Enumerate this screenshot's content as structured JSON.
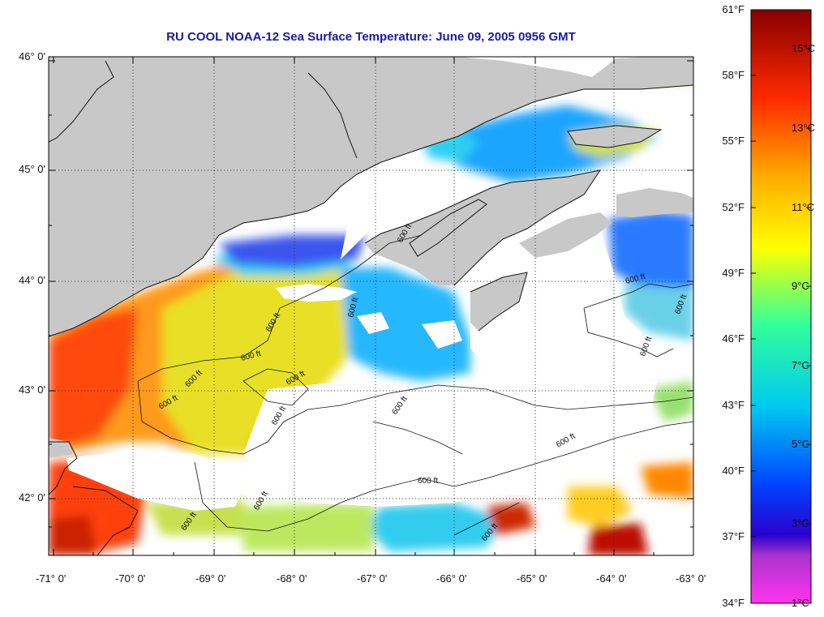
{
  "title": "RU COOL  NOAA-12  Sea Surface Temperature:  June 09, 2005 0956 GMT",
  "latitude_labels": [
    "46° 0'",
    "45° 0'",
    "44° 0'",
    "43° 0'",
    "42° 0'"
  ],
  "longitude_labels": [
    "-71° 0'",
    "-70° 0'",
    "-69° 0'",
    "-68° 0'",
    "-67° 0'",
    "-66° 0'",
    "-65° 0'",
    "-64° 0'",
    "-63° 0'"
  ],
  "contour_label": "600 ft",
  "colorbar": {
    "fahrenheit_labels": [
      "61°F",
      "58°F",
      "55°F",
      "52°F",
      "49°F",
      "46°F",
      "43°F",
      "40°F",
      "37°F",
      "34°F"
    ],
    "celsius_labels": [
      "15°C",
      "13°C",
      "11°C",
      "9°C",
      "7°C",
      "5°C",
      "3°C",
      "1°C"
    ]
  },
  "colors": {
    "land": "#c8c8c8",
    "no_data": "#ffffff",
    "title": "#1a1aa6",
    "contour": "#111111"
  }
}
